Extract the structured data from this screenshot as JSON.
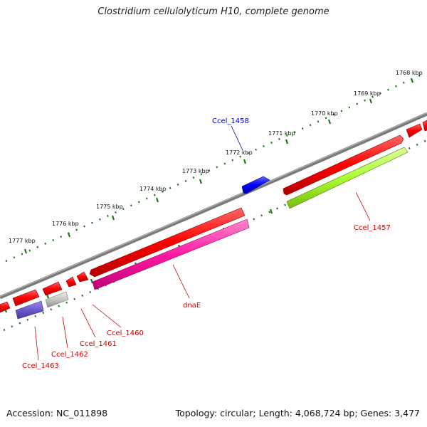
{
  "title": "Clostridium cellulolyticum H10, complete genome",
  "accession": "Accession: NC_011898",
  "summary": "Topology: circular; Length: 4,068,724 bp; Genes: 3,477",
  "scale_labels": [
    "1768 kbp",
    "1769 kbp",
    "1770 kbp",
    "1771 kbp",
    "1772 kbp",
    "1773 kbp",
    "1774 kbp",
    "1775 kbp",
    "1776 kbp",
    "1777 kbp"
  ],
  "genes": [
    {
      "name": "Ccel_1458",
      "color": "#0000cc"
    },
    {
      "name": "Ccel_1457",
      "color": "#cc0000"
    },
    {
      "name": "dnaE",
      "color": "#cc0000"
    },
    {
      "name": "Ccel_1460",
      "color": "#cc0000"
    },
    {
      "name": "Ccel_1461",
      "color": "#cc0000"
    },
    {
      "name": "Ccel_1462",
      "color": "#cc0000"
    },
    {
      "name": "Ccel_1463",
      "color": "#cc0000"
    }
  ],
  "colors": {
    "backbone": "#7a7a7a",
    "cds": "#ff1a1a",
    "tick": "#1f7a1f",
    "pink_feature": "#ff33aa",
    "green_feature": "#aaff33",
    "purple_feature": "#6a5acd",
    "grey_feature": "#bdbdbd",
    "blue_feature": "#1a1aff"
  }
}
